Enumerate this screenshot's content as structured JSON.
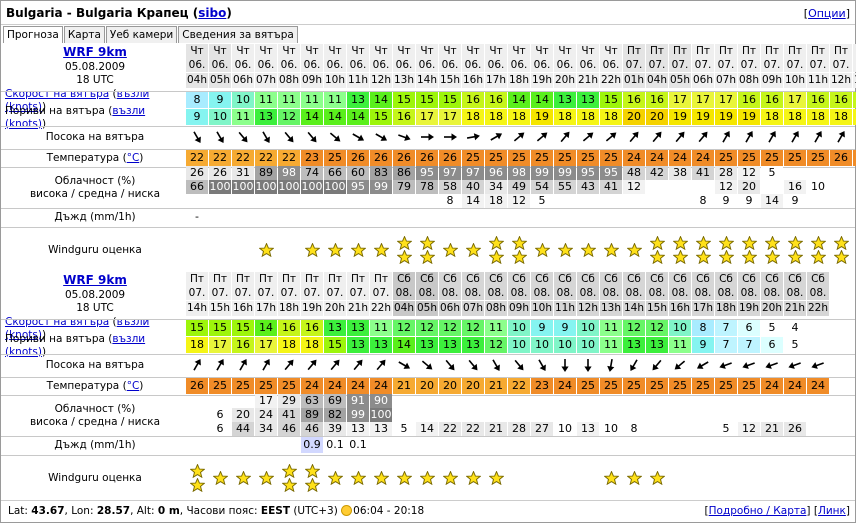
{
  "header": {
    "title": "Bulgaria - Bulgaria Крапец",
    "title_link": "sibo",
    "options_link": "Опции"
  },
  "tabs": [
    "Прогноза",
    "Карта",
    "Уеб камери",
    "Сведения за вятъра"
  ],
  "row_labels": {
    "wind_speed": "Скорост на вятъра",
    "wind_unit": "възли (knots)",
    "gusts": "Пориви на вятъра",
    "wind_dir": "Посока на вятъра",
    "temp": "Температура",
    "temp_unit": "°C",
    "cloud1": "Облачност (%)",
    "cloud2": "висока / средна / ниска",
    "rain": "Дъжд (mm/1h)",
    "rating": "Windguru оценка"
  },
  "colors": {
    "speed_scale": {
      "5": "#ffffff",
      "6": "#dcffff",
      "7": "#bef4ff",
      "8": "#a8ecff",
      "9": "#85f4f0",
      "10": "#80f5c8",
      "11": "#8cff8c",
      "12": "#66f566",
      "13": "#3cef3c",
      "14": "#5aef1c",
      "15": "#9df50b",
      "16": "#c5f51a",
      "17": "#e9f53b",
      "18": "#f5f516",
      "19": "#f5e600",
      "20": "#f5d200"
    },
    "temp_high": "#f08c28",
    "temp_low": "#f6aa32",
    "cloud_scale": {
      "0": "#ffffff",
      "12": "#f2f2f2",
      "20": "#e8e8e8",
      "40": "#d4d4d4",
      "60": "#bdbdbd",
      "80": "#a3a3a3",
      "90": "#8c8c8c",
      "100": "#7a7a7a"
    },
    "rain_light": "#d2d8ff"
  },
  "blocks": [
    {
      "model": "WRF 9km",
      "date": "05.08.2009",
      "run": "18 UTC",
      "days": [
        "Чт",
        "Чт",
        "Чт",
        "Чт",
        "Чт",
        "Чт",
        "Чт",
        "Чт",
        "Чт",
        "Чт",
        "Чт",
        "Чт",
        "Чт",
        "Чт",
        "Чт",
        "Чт",
        "Чт",
        "Чт",
        "Чт",
        "Пт",
        "Пт",
        "Пт",
        "Пт",
        "Пт",
        "Пт",
        "Пт",
        "Пт",
        "Пт",
        "Пт",
        "Пт"
      ],
      "dates": [
        "06.",
        "06.",
        "06.",
        "06.",
        "06.",
        "06.",
        "06.",
        "06.",
        "06.",
        "06.",
        "06.",
        "06.",
        "06.",
        "06.",
        "06.",
        "06.",
        "06.",
        "06.",
        "06.",
        "07.",
        "07.",
        "07.",
        "07.",
        "07.",
        "07.",
        "07.",
        "07.",
        "07.",
        "07.",
        "07."
      ],
      "hours": [
        "04h",
        "05h",
        "06h",
        "07h",
        "08h",
        "09h",
        "10h",
        "11h",
        "12h",
        "13h",
        "14h",
        "15h",
        "16h",
        "17h",
        "18h",
        "19h",
        "20h",
        "21h",
        "22h",
        "01h",
        "04h",
        "05h",
        "06h",
        "07h",
        "08h",
        "09h",
        "10h",
        "11h",
        "12h",
        "13h"
      ],
      "weekend": [
        false,
        false,
        false,
        false,
        false,
        false,
        false,
        false,
        false,
        false,
        false,
        false,
        false,
        false,
        false,
        false,
        false,
        false,
        false,
        false,
        false,
        false,
        false,
        false,
        false,
        false,
        false,
        false,
        false,
        false
      ],
      "night": [
        true,
        true,
        false,
        false,
        false,
        false,
        false,
        false,
        false,
        false,
        false,
        false,
        false,
        false,
        false,
        false,
        false,
        false,
        false,
        true,
        true,
        true,
        false,
        false,
        false,
        false,
        false,
        false,
        false,
        false
      ],
      "speed": [
        8,
        9,
        10,
        11,
        11,
        11,
        11,
        13,
        14,
        15,
        15,
        15,
        16,
        16,
        14,
        14,
        13,
        13,
        15,
        16,
        16,
        17,
        17,
        17,
        16,
        16,
        17,
        16,
        16,
        16
      ],
      "gusts": [
        9,
        10,
        11,
        13,
        12,
        14,
        14,
        14,
        15,
        16,
        17,
        17,
        18,
        18,
        18,
        19,
        18,
        18,
        18,
        20,
        20,
        19,
        19,
        19,
        19,
        18,
        18,
        18,
        18,
        18
      ],
      "dir_deg": [
        330,
        330,
        320,
        330,
        320,
        320,
        310,
        300,
        300,
        290,
        270,
        270,
        260,
        240,
        230,
        230,
        220,
        230,
        230,
        220,
        220,
        220,
        220,
        210,
        210,
        210,
        210,
        210,
        210,
        210
      ],
      "temp": [
        22,
        22,
        22,
        22,
        22,
        23,
        25,
        26,
        26,
        26,
        26,
        26,
        25,
        25,
        25,
        25,
        25,
        25,
        25,
        24,
        24,
        24,
        24,
        25,
        25,
        25,
        25,
        25,
        26,
        26
      ],
      "cloud_high": [
        26,
        26,
        31,
        89,
        98,
        74,
        66,
        60,
        83,
        86,
        95,
        97,
        97,
        96,
        98,
        99,
        99,
        95,
        95,
        48,
        42,
        38,
        41,
        28,
        12,
        5,
        "",
        "",
        "",
        ""
      ],
      "cloud_mid": [
        66,
        100,
        100,
        100,
        100,
        100,
        100,
        95,
        99,
        79,
        78,
        58,
        40,
        34,
        49,
        54,
        55,
        43,
        41,
        12,
        "",
        "",
        "",
        12,
        20,
        "",
        16,
        10,
        "",
        ""
      ],
      "cloud_low": [
        "",
        "",
        "",
        "",
        "",
        "",
        "",
        "",
        "",
        "",
        "",
        8,
        14,
        18,
        12,
        5,
        "",
        "",
        "",
        "",
        "",
        "",
        8,
        9,
        9,
        14,
        9,
        "",
        "",
        ""
      ],
      "rain": [
        "-",
        "",
        "",
        "",
        "",
        "",
        "",
        "",
        "",
        "",
        "",
        "",
        "",
        "",
        "",
        "",
        "",
        "",
        "",
        "",
        "",
        "",
        "",
        "",
        "",
        "",
        "",
        "",
        "",
        ""
      ],
      "stars": [
        0,
        0,
        0,
        1,
        0,
        1,
        1,
        1,
        1,
        2,
        2,
        1,
        1,
        2,
        2,
        1,
        1,
        1,
        1,
        1,
        2,
        2,
        2,
        2,
        2,
        2,
        2,
        2,
        2,
        2
      ]
    },
    {
      "model": "WRF 9km",
      "date": "05.08.2009",
      "run": "18 UTC",
      "days": [
        "Пт",
        "Пт",
        "Пт",
        "Пт",
        "Пт",
        "Пт",
        "Пт",
        "Пт",
        "Пт",
        "Сб",
        "Сб",
        "Сб",
        "Сб",
        "Сб",
        "Сб",
        "Сб",
        "Сб",
        "Сб",
        "Сб",
        "Сб",
        "Сб",
        "Сб",
        "Сб",
        "Сб",
        "Сб",
        "Сб",
        "Сб",
        "Сб",
        "Сб",
        "Сб"
      ],
      "dates": [
        "07.",
        "07.",
        "07.",
        "07.",
        "07.",
        "07.",
        "07.",
        "07.",
        "07.",
        "08.",
        "08.",
        "08.",
        "08.",
        "08.",
        "08.",
        "08.",
        "08.",
        "08.",
        "08.",
        "08.",
        "08.",
        "08.",
        "08.",
        "08.",
        "08.",
        "08.",
        "08.",
        "08.",
        "08.",
        "08."
      ],
      "hours": [
        "14h",
        "15h",
        "16h",
        "17h",
        "18h",
        "19h",
        "20h",
        "21h",
        "22h",
        "04h",
        "05h",
        "06h",
        "07h",
        "08h",
        "09h",
        "10h",
        "11h",
        "12h",
        "13h",
        "14h",
        "15h",
        "16h",
        "17h",
        "18h",
        "19h",
        "20h",
        "21h",
        "22h",
        "",
        ""
      ],
      "weekend": [
        false,
        false,
        false,
        false,
        false,
        false,
        false,
        false,
        false,
        true,
        true,
        true,
        true,
        true,
        true,
        true,
        true,
        true,
        true,
        true,
        true,
        true,
        true,
        true,
        true,
        true,
        true,
        true,
        false,
        false
      ],
      "night": [
        false,
        false,
        false,
        false,
        false,
        false,
        false,
        false,
        false,
        true,
        true,
        false,
        false,
        false,
        false,
        false,
        false,
        false,
        false,
        false,
        false,
        false,
        false,
        false,
        false,
        false,
        false,
        false,
        false,
        false
      ],
      "speed": [
        15,
        15,
        15,
        14,
        16,
        16,
        13,
        13,
        11,
        12,
        12,
        12,
        12,
        11,
        10,
        9,
        9,
        10,
        11,
        12,
        12,
        10,
        8,
        7,
        6,
        5,
        4,
        "",
        "",
        ""
      ],
      "gusts": [
        18,
        17,
        16,
        17,
        18,
        18,
        15,
        13,
        13,
        14,
        13,
        13,
        13,
        12,
        10,
        10,
        10,
        10,
        11,
        13,
        13,
        11,
        9,
        7,
        7,
        6,
        5,
        "",
        "",
        ""
      ],
      "dir_deg": [
        210,
        210,
        210,
        210,
        220,
        220,
        220,
        220,
        220,
        300,
        310,
        320,
        320,
        330,
        320,
        330,
        360,
        0,
        10,
        30,
        40,
        50,
        60,
        70,
        70,
        70,
        70,
        70,
        "",
        ""
      ],
      "temp": [
        26,
        25,
        25,
        25,
        25,
        24,
        24,
        24,
        24,
        21,
        20,
        20,
        20,
        21,
        22,
        23,
        24,
        25,
        25,
        25,
        25,
        25,
        25,
        25,
        25,
        24,
        24,
        24,
        "",
        ""
      ],
      "cloud_high": [
        "",
        "",
        "",
        17,
        29,
        63,
        69,
        91,
        90,
        "",
        "",
        "",
        "",
        "",
        "",
        "",
        "",
        "",
        "",
        "",
        "",
        "",
        "",
        "",
        "",
        "",
        "",
        "",
        "",
        ""
      ],
      "cloud_mid": [
        "",
        6,
        20,
        24,
        41,
        89,
        82,
        99,
        100,
        "",
        "",
        "",
        "",
        "",
        "",
        "",
        "",
        "",
        "",
        "",
        "",
        "",
        "",
        "",
        "",
        "",
        "",
        "",
        "",
        ""
      ],
      "cloud_low": [
        "",
        6,
        44,
        34,
        46,
        46,
        39,
        13,
        13,
        5,
        14,
        22,
        22,
        21,
        28,
        27,
        10,
        13,
        10,
        8,
        "",
        "",
        "",
        5,
        12,
        21,
        26,
        "",
        "",
        ""
      ],
      "rain": [
        "",
        "",
        "",
        "",
        "",
        "0.9",
        "0.1",
        "0.1",
        "",
        "",
        "",
        "",
        "",
        "",
        "",
        "",
        "",
        "",
        "",
        "",
        "",
        "",
        "",
        "",
        "",
        "",
        "",
        "",
        "",
        ""
      ],
      "stars": [
        2,
        1,
        1,
        1,
        2,
        2,
        1,
        1,
        1,
        1,
        1,
        1,
        1,
        1,
        0,
        0,
        0,
        0,
        1,
        1,
        1,
        0,
        0,
        0,
        0,
        0,
        0,
        0,
        0,
        0
      ]
    }
  ],
  "footer": {
    "lat_label": "Lat:",
    "lat": "43.67",
    "lon_label": "Lon:",
    "lon": "28.57",
    "alt_label": "Alt:",
    "alt": "0 m",
    "tz_label": "Часови пояс:",
    "tz": "EEST",
    "tz_offset": "(UTC+3)",
    "sun": "06:04 - 20:18",
    "detail_link": "Подробно / Карта",
    "link_link": "Линк"
  }
}
